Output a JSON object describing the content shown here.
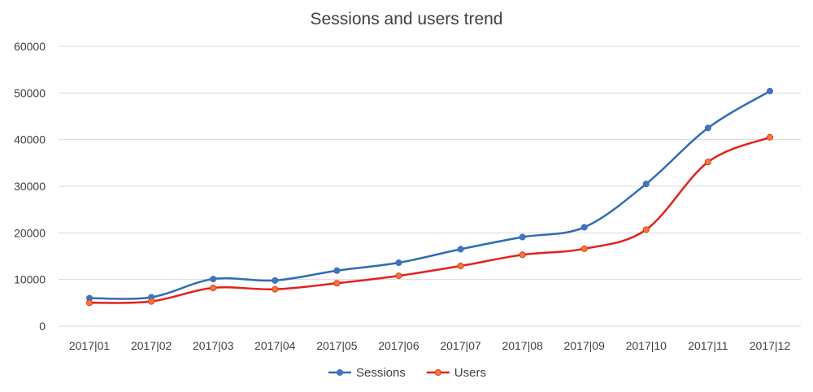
{
  "chart_data": {
    "type": "line",
    "title": "Sessions and users trend",
    "xlabel": "",
    "ylabel": "",
    "categories": [
      "2017|01",
      "2017|02",
      "2017|03",
      "2017|04",
      "2017|05",
      "2017|06",
      "2017|07",
      "2017|08",
      "2017|09",
      "2017|10",
      "2017|11",
      "2017|12"
    ],
    "ylim": [
      0,
      60000
    ],
    "yticks": [
      0,
      10000,
      20000,
      30000,
      40000,
      50000,
      60000
    ],
    "ytick_labels": [
      "0",
      "10000",
      "20000",
      "30000",
      "40000",
      "50000",
      "60000"
    ],
    "grid": true,
    "legend": "bottom",
    "smooth": true,
    "series": [
      {
        "name": "Sessions",
        "color": "#2e6db4",
        "marker_color": "#4472c4",
        "values": [
          6000,
          6200,
          10100,
          9800,
          11900,
          13600,
          16500,
          19100,
          21200,
          30500,
          42500,
          50400
        ]
      },
      {
        "name": "Users",
        "color": "#e3211c",
        "marker_color": "#ed7d31",
        "values": [
          5000,
          5300,
          8200,
          7900,
          9200,
          10800,
          12900,
          15300,
          16600,
          20700,
          35200,
          40500
        ]
      }
    ]
  }
}
